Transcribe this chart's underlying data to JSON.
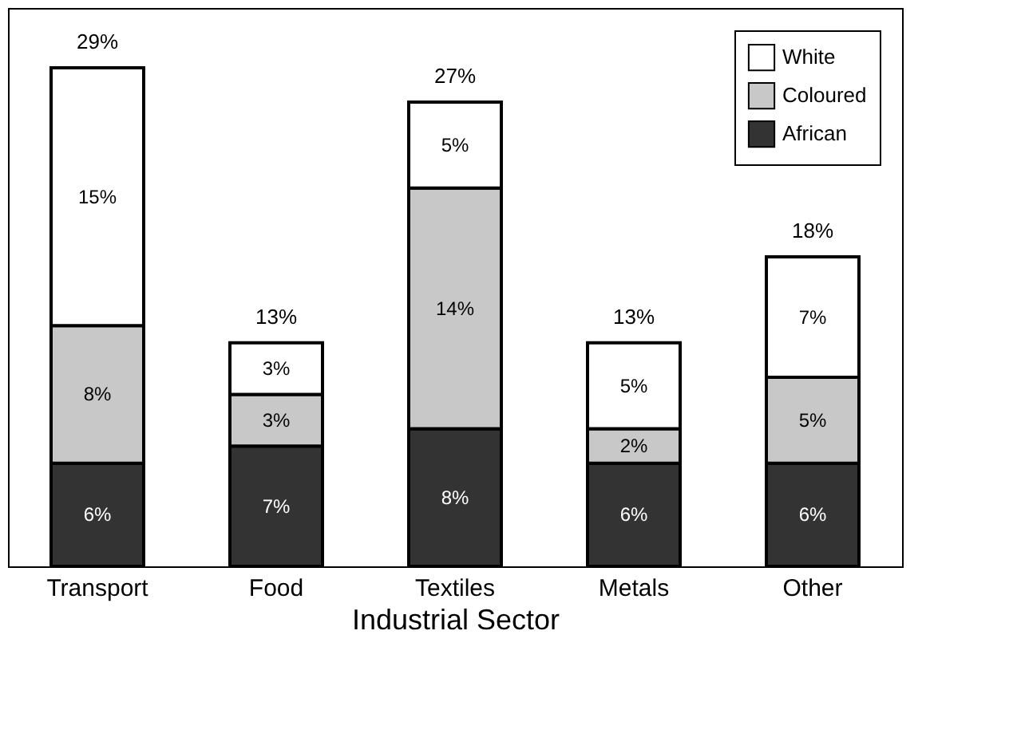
{
  "chart_data": {
    "type": "bar",
    "xlabel": "Industrial Sector",
    "categories": [
      "Transport",
      "Food",
      "Textiles",
      "Metals",
      "Other"
    ],
    "stacked": true,
    "legend": "top right",
    "grid": false,
    "series": [
      {
        "name": "African",
        "color": "#333333",
        "values": [
          6,
          7,
          8,
          6,
          6
        ],
        "value_labels": [
          "6%",
          "7%",
          "8%",
          "6%",
          "6%"
        ]
      },
      {
        "name": "Coloured",
        "color": "#c8c8c8",
        "values": [
          8,
          3,
          14,
          2,
          5
        ],
        "value_labels": [
          "8%",
          "3%",
          "14%",
          "2%",
          "5%"
        ]
      },
      {
        "name": "White",
        "color": "#ffffff",
        "values": [
          15,
          3,
          5,
          5,
          7
        ],
        "value_labels": [
          "15%",
          "3%",
          "5%",
          "5%",
          "7%"
        ]
      }
    ],
    "totals": [
      "29%",
      "13%",
      "27%",
      "13%",
      "18%"
    ]
  }
}
